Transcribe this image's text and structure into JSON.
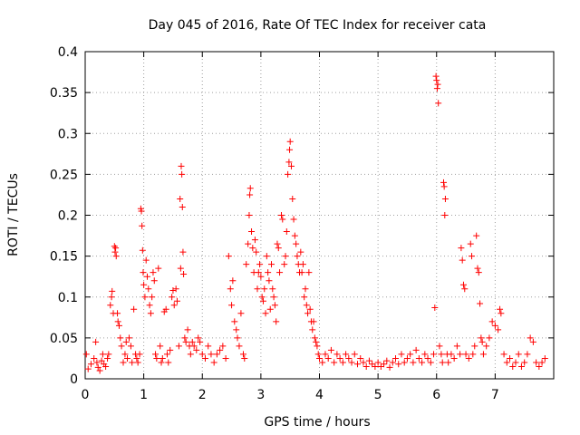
{
  "chart_data": {
    "type": "scatter",
    "title": "Day 045 of 2016, Rate Of TEC Index for receiver cata",
    "xlabel": "GPS time / hours",
    "ylabel": "ROTI / TECUs",
    "xlim": [
      0,
      8
    ],
    "ylim": [
      0,
      0.4
    ],
    "xticks": [
      "0",
      "1",
      "2",
      "3",
      "4",
      "5",
      "6",
      "7"
    ],
    "yticks": [
      "0",
      "0.05",
      "0.1",
      "0.15",
      "0.2",
      "0.25",
      "0.3",
      "0.35",
      "0.4"
    ],
    "xtick_values": [
      0,
      1,
      2,
      3,
      4,
      5,
      6,
      7
    ],
    "ytick_values": [
      0,
      0.05,
      0.1,
      0.15,
      0.2,
      0.25,
      0.3,
      0.35,
      0.4
    ],
    "grid": true,
    "marker": "+",
    "color": "#ff0000",
    "series": [
      {
        "name": "ROTI",
        "points": [
          [
            0.02,
            0.03
          ],
          [
            0.05,
            0.012
          ],
          [
            0.1,
            0.018
          ],
          [
            0.15,
            0.025
          ],
          [
            0.18,
            0.045
          ],
          [
            0.2,
            0.02
          ],
          [
            0.22,
            0.014
          ],
          [
            0.25,
            0.01
          ],
          [
            0.28,
            0.022
          ],
          [
            0.3,
            0.03
          ],
          [
            0.32,
            0.018
          ],
          [
            0.35,
            0.015
          ],
          [
            0.38,
            0.025
          ],
          [
            0.4,
            0.03
          ],
          [
            0.43,
            0.09
          ],
          [
            0.45,
            0.1
          ],
          [
            0.46,
            0.107
          ],
          [
            0.48,
            0.08
          ],
          [
            0.5,
            0.162
          ],
          [
            0.51,
            0.155
          ],
          [
            0.52,
            0.16
          ],
          [
            0.53,
            0.15
          ],
          [
            0.55,
            0.08
          ],
          [
            0.56,
            0.07
          ],
          [
            0.58,
            0.065
          ],
          [
            0.6,
            0.05
          ],
          [
            0.62,
            0.04
          ],
          [
            0.65,
            0.02
          ],
          [
            0.68,
            0.03
          ],
          [
            0.7,
            0.045
          ],
          [
            0.72,
            0.025
          ],
          [
            0.75,
            0.05
          ],
          [
            0.78,
            0.04
          ],
          [
            0.8,
            0.02
          ],
          [
            0.83,
            0.085
          ],
          [
            0.86,
            0.03
          ],
          [
            0.88,
            0.025
          ],
          [
            0.9,
            0.02
          ],
          [
            0.93,
            0.03
          ],
          [
            0.95,
            0.208
          ],
          [
            0.96,
            0.205
          ],
          [
            0.97,
            0.187
          ],
          [
            0.98,
            0.157
          ],
          [
            0.99,
            0.13
          ],
          [
            1.0,
            0.115
          ],
          [
            1.02,
            0.1
          ],
          [
            1.04,
            0.145
          ],
          [
            1.06,
            0.125
          ],
          [
            1.08,
            0.11
          ],
          [
            1.1,
            0.09
          ],
          [
            1.12,
            0.08
          ],
          [
            1.14,
            0.1
          ],
          [
            1.16,
            0.13
          ],
          [
            1.18,
            0.12
          ],
          [
            1.2,
            0.03
          ],
          [
            1.22,
            0.025
          ],
          [
            1.25,
            0.135
          ],
          [
            1.28,
            0.04
          ],
          [
            1.3,
            0.02
          ],
          [
            1.32,
            0.025
          ],
          [
            1.35,
            0.082
          ],
          [
            1.38,
            0.085
          ],
          [
            1.4,
            0.03
          ],
          [
            1.42,
            0.02
          ],
          [
            1.45,
            0.035
          ],
          [
            1.48,
            0.1
          ],
          [
            1.5,
            0.108
          ],
          [
            1.52,
            0.09
          ],
          [
            1.55,
            0.11
          ],
          [
            1.57,
            0.095
          ],
          [
            1.6,
            0.04
          ],
          [
            1.62,
            0.22
          ],
          [
            1.63,
            0.135
          ],
          [
            1.64,
            0.26
          ],
          [
            1.65,
            0.25
          ],
          [
            1.66,
            0.21
          ],
          [
            1.67,
            0.155
          ],
          [
            1.68,
            0.128
          ],
          [
            1.7,
            0.05
          ],
          [
            1.72,
            0.045
          ],
          [
            1.75,
            0.06
          ],
          [
            1.78,
            0.04
          ],
          [
            1.8,
            0.03
          ],
          [
            1.83,
            0.045
          ],
          [
            1.86,
            0.04
          ],
          [
            1.9,
            0.035
          ],
          [
            1.93,
            0.05
          ],
          [
            1.96,
            0.045
          ],
          [
            2.0,
            0.03
          ],
          [
            2.05,
            0.025
          ],
          [
            2.1,
            0.04
          ],
          [
            2.15,
            0.03
          ],
          [
            2.2,
            0.02
          ],
          [
            2.25,
            0.03
          ],
          [
            2.3,
            0.035
          ],
          [
            2.35,
            0.04
          ],
          [
            2.4,
            0.025
          ],
          [
            2.45,
            0.15
          ],
          [
            2.48,
            0.11
          ],
          [
            2.5,
            0.09
          ],
          [
            2.52,
            0.12
          ],
          [
            2.55,
            0.07
          ],
          [
            2.58,
            0.06
          ],
          [
            2.6,
            0.05
          ],
          [
            2.63,
            0.04
          ],
          [
            2.66,
            0.08
          ],
          [
            2.7,
            0.03
          ],
          [
            2.72,
            0.025
          ],
          [
            2.75,
            0.14
          ],
          [
            2.78,
            0.165
          ],
          [
            2.8,
            0.2
          ],
          [
            2.81,
            0.225
          ],
          [
            2.82,
            0.233
          ],
          [
            2.84,
            0.18
          ],
          [
            2.86,
            0.16
          ],
          [
            2.88,
            0.13
          ],
          [
            2.9,
            0.17
          ],
          [
            2.92,
            0.155
          ],
          [
            2.94,
            0.11
          ],
          [
            2.96,
            0.13
          ],
          [
            2.98,
            0.14
          ],
          [
            3.0,
            0.125
          ],
          [
            3.02,
            0.1
          ],
          [
            3.04,
            0.095
          ],
          [
            3.06,
            0.11
          ],
          [
            3.08,
            0.08
          ],
          [
            3.1,
            0.15
          ],
          [
            3.12,
            0.13
          ],
          [
            3.14,
            0.12
          ],
          [
            3.16,
            0.085
          ],
          [
            3.18,
            0.14
          ],
          [
            3.2,
            0.11
          ],
          [
            3.22,
            0.1
          ],
          [
            3.24,
            0.09
          ],
          [
            3.26,
            0.07
          ],
          [
            3.28,
            0.165
          ],
          [
            3.3,
            0.16
          ],
          [
            3.32,
            0.13
          ],
          [
            3.35,
            0.2
          ],
          [
            3.37,
            0.195
          ],
          [
            3.4,
            0.14
          ],
          [
            3.42,
            0.15
          ],
          [
            3.44,
            0.18
          ],
          [
            3.46,
            0.25
          ],
          [
            3.48,
            0.265
          ],
          [
            3.49,
            0.28
          ],
          [
            3.5,
            0.29
          ],
          [
            3.52,
            0.26
          ],
          [
            3.54,
            0.22
          ],
          [
            3.56,
            0.195
          ],
          [
            3.58,
            0.175
          ],
          [
            3.6,
            0.165
          ],
          [
            3.62,
            0.15
          ],
          [
            3.64,
            0.14
          ],
          [
            3.66,
            0.13
          ],
          [
            3.68,
            0.155
          ],
          [
            3.7,
            0.13
          ],
          [
            3.72,
            0.14
          ],
          [
            3.74,
            0.1
          ],
          [
            3.76,
            0.11
          ],
          [
            3.78,
            0.09
          ],
          [
            3.8,
            0.08
          ],
          [
            3.82,
            0.13
          ],
          [
            3.84,
            0.085
          ],
          [
            3.86,
            0.07
          ],
          [
            3.88,
            0.06
          ],
          [
            3.9,
            0.07
          ],
          [
            3.92,
            0.05
          ],
          [
            3.94,
            0.045
          ],
          [
            3.96,
            0.04
          ],
          [
            3.98,
            0.03
          ],
          [
            4.0,
            0.025
          ],
          [
            4.05,
            0.02
          ],
          [
            4.1,
            0.03
          ],
          [
            4.15,
            0.025
          ],
          [
            4.2,
            0.035
          ],
          [
            4.25,
            0.02
          ],
          [
            4.3,
            0.03
          ],
          [
            4.35,
            0.025
          ],
          [
            4.4,
            0.02
          ],
          [
            4.45,
            0.03
          ],
          [
            4.5,
            0.025
          ],
          [
            4.55,
            0.02
          ],
          [
            4.6,
            0.03
          ],
          [
            4.65,
            0.018
          ],
          [
            4.7,
            0.025
          ],
          [
            4.75,
            0.02
          ],
          [
            4.8,
            0.015
          ],
          [
            4.85,
            0.022
          ],
          [
            4.9,
            0.018
          ],
          [
            4.95,
            0.015
          ],
          [
            5.0,
            0.02
          ],
          [
            5.05,
            0.015
          ],
          [
            5.1,
            0.018
          ],
          [
            5.15,
            0.022
          ],
          [
            5.2,
            0.014
          ],
          [
            5.25,
            0.02
          ],
          [
            5.3,
            0.025
          ],
          [
            5.35,
            0.018
          ],
          [
            5.4,
            0.03
          ],
          [
            5.45,
            0.02
          ],
          [
            5.5,
            0.025
          ],
          [
            5.55,
            0.03
          ],
          [
            5.6,
            0.02
          ],
          [
            5.65,
            0.035
          ],
          [
            5.7,
            0.025
          ],
          [
            5.75,
            0.02
          ],
          [
            5.8,
            0.03
          ],
          [
            5.85,
            0.025
          ],
          [
            5.9,
            0.02
          ],
          [
            5.95,
            0.03
          ],
          [
            5.97,
            0.087
          ],
          [
            5.99,
            0.37
          ],
          [
            6.0,
            0.365
          ],
          [
            6.01,
            0.355
          ],
          [
            6.02,
            0.36
          ],
          [
            6.03,
            0.337
          ],
          [
            6.05,
            0.04
          ],
          [
            6.08,
            0.03
          ],
          [
            6.1,
            0.02
          ],
          [
            6.12,
            0.24
          ],
          [
            6.13,
            0.235
          ],
          [
            6.14,
            0.2
          ],
          [
            6.15,
            0.22
          ],
          [
            6.18,
            0.03
          ],
          [
            6.2,
            0.02
          ],
          [
            6.25,
            0.03
          ],
          [
            6.3,
            0.025
          ],
          [
            6.35,
            0.04
          ],
          [
            6.4,
            0.03
          ],
          [
            6.42,
            0.16
          ],
          [
            6.44,
            0.145
          ],
          [
            6.46,
            0.115
          ],
          [
            6.48,
            0.11
          ],
          [
            6.5,
            0.03
          ],
          [
            6.55,
            0.025
          ],
          [
            6.58,
            0.165
          ],
          [
            6.6,
            0.15
          ],
          [
            6.62,
            0.03
          ],
          [
            6.65,
            0.04
          ],
          [
            6.68,
            0.175
          ],
          [
            6.7,
            0.135
          ],
          [
            6.72,
            0.13
          ],
          [
            6.74,
            0.092
          ],
          [
            6.76,
            0.05
          ],
          [
            6.78,
            0.045
          ],
          [
            6.8,
            0.03
          ],
          [
            6.85,
            0.04
          ],
          [
            6.9,
            0.05
          ],
          [
            6.95,
            0.07
          ],
          [
            7.0,
            0.065
          ],
          [
            7.05,
            0.06
          ],
          [
            7.08,
            0.085
          ],
          [
            7.1,
            0.08
          ],
          [
            7.15,
            0.03
          ],
          [
            7.2,
            0.02
          ],
          [
            7.25,
            0.025
          ],
          [
            7.3,
            0.015
          ],
          [
            7.35,
            0.02
          ],
          [
            7.4,
            0.03
          ],
          [
            7.45,
            0.015
          ],
          [
            7.5,
            0.02
          ],
          [
            7.55,
            0.03
          ],
          [
            7.6,
            0.05
          ],
          [
            7.65,
            0.045
          ],
          [
            7.7,
            0.02
          ],
          [
            7.75,
            0.015
          ],
          [
            7.8,
            0.02
          ],
          [
            7.85,
            0.025
          ]
        ]
      }
    ]
  }
}
